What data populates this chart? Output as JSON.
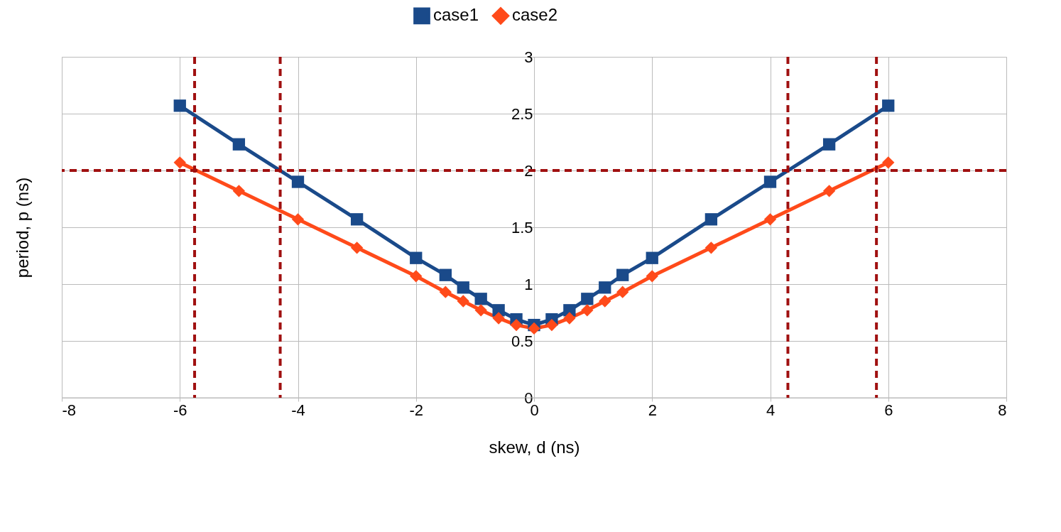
{
  "chart_data": {
    "type": "line",
    "xlabel": "skew, d (ns)",
    "ylabel": "period, p (ns)",
    "x": [
      -6,
      -5,
      -4,
      -3,
      -2,
      -1.5,
      -1.2,
      -0.9,
      -0.6,
      -0.3,
      0,
      0.3,
      0.6,
      0.9,
      1.2,
      1.5,
      2,
      3,
      4,
      5,
      6
    ],
    "series": [
      {
        "name": "case1",
        "color": "#1a4a8a",
        "marker": "square",
        "values": [
          2.57,
          2.23,
          1.9,
          1.57,
          1.23,
          1.08,
          0.97,
          0.87,
          0.77,
          0.69,
          0.64,
          0.69,
          0.77,
          0.87,
          0.97,
          1.08,
          1.23,
          1.57,
          1.9,
          2.23,
          2.57
        ]
      },
      {
        "name": "case2",
        "color": "#ff4a1a",
        "marker": "diamond",
        "values": [
          2.07,
          1.82,
          1.57,
          1.32,
          1.07,
          0.93,
          0.85,
          0.77,
          0.7,
          0.64,
          0.61,
          0.64,
          0.7,
          0.77,
          0.85,
          0.93,
          1.07,
          1.32,
          1.57,
          1.82,
          2.07
        ]
      }
    ],
    "xlim": [
      -8,
      8
    ],
    "xticks": [
      -8,
      -6,
      -4,
      -2,
      0,
      2,
      4,
      6,
      8
    ],
    "ylim": [
      0,
      3
    ],
    "yticks": [
      0,
      0.5,
      1,
      1.5,
      2,
      2.5,
      3
    ],
    "ref_lines": [
      {
        "axis": "y",
        "value": 2,
        "color": "#a01010",
        "line_style": "dashed"
      },
      {
        "axis": "x",
        "value": -5.75,
        "color": "#a01010",
        "line_style": "dashed"
      },
      {
        "axis": "x",
        "value": -4.3,
        "color": "#a01010",
        "line_style": "dashed"
      },
      {
        "axis": "x",
        "value": 4.3,
        "color": "#a01010",
        "line_style": "dashed"
      },
      {
        "axis": "x",
        "value": 5.8,
        "color": "#a01010",
        "line_style": "dashed"
      }
    ],
    "grid": true,
    "legend": "top",
    "line_style": "solid"
  }
}
